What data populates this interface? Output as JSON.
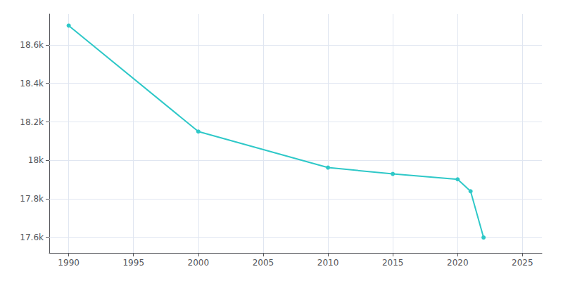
{
  "chart_data": {
    "type": "line",
    "x": [
      1990,
      2000,
      2010,
      2015,
      2020,
      2021,
      2022
    ],
    "values": [
      18700,
      18150,
      17963,
      17930,
      17902,
      17840,
      17600
    ],
    "color": "#2ec8c8",
    "marker": "circle",
    "xlim": [
      1988.5,
      2026.5
    ],
    "xticks": [
      1990,
      1995,
      2000,
      2005,
      2010,
      2015,
      2020,
      2025
    ],
    "ylim": [
      17520,
      18760
    ],
    "yticks": [
      {
        "value": 17600,
        "label": "17.6k"
      },
      {
        "value": 17800,
        "label": "17.8k"
      },
      {
        "value": 18000,
        "label": "18k"
      },
      {
        "value": 18200,
        "label": "18.2k"
      },
      {
        "value": 18400,
        "label": "18.4k"
      },
      {
        "value": 18600,
        "label": "18.6k"
      }
    ],
    "grid": true
  }
}
